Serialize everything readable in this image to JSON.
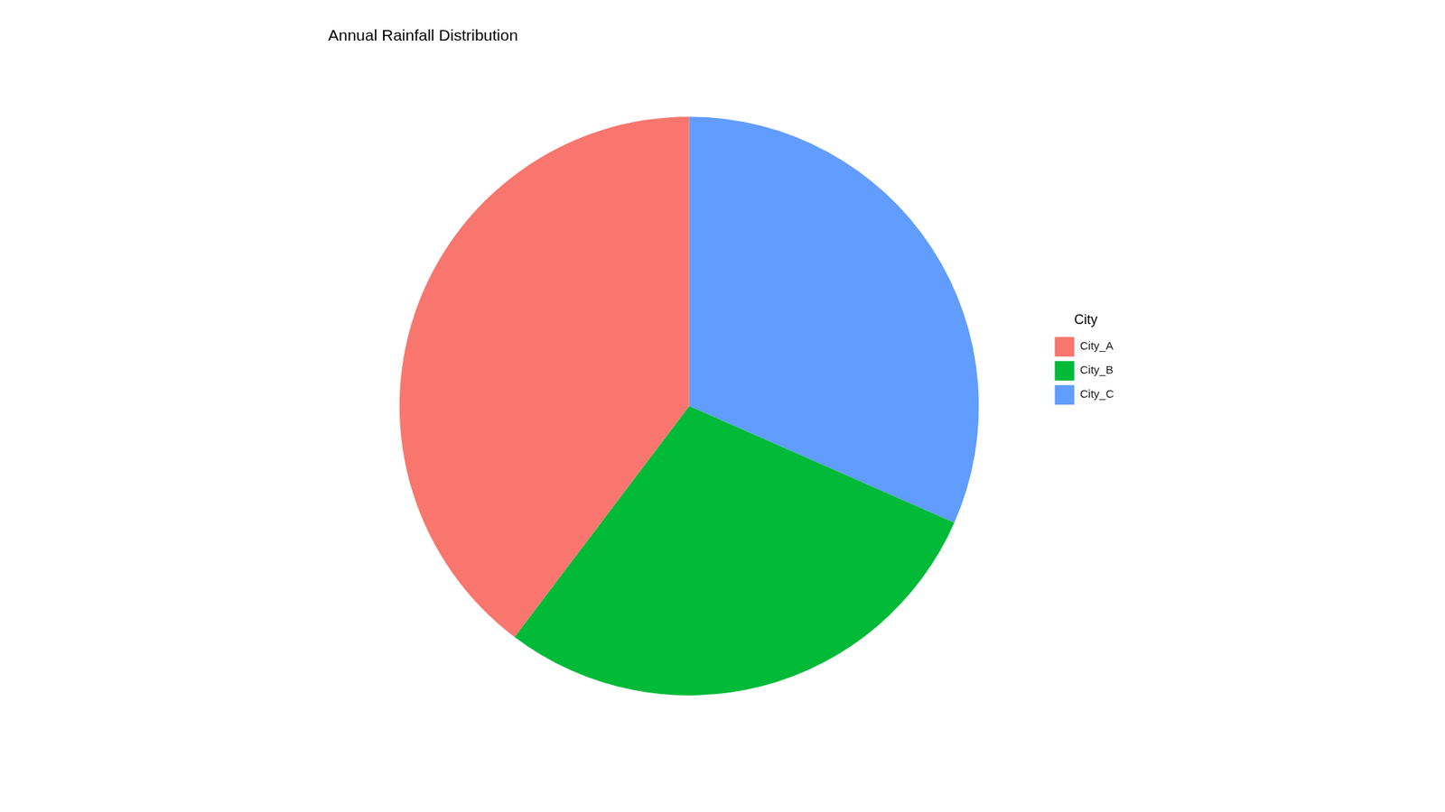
{
  "chart_data": {
    "type": "pie",
    "title": "Annual Rainfall Distribution",
    "categories": [
      "City_A",
      "City_B",
      "City_C"
    ],
    "values": [
      39.7,
      28.7,
      31.6
    ],
    "colors": [
      "#F8766D",
      "#00BA38",
      "#619CFF"
    ],
    "legend": "right",
    "legend_title": "City"
  }
}
